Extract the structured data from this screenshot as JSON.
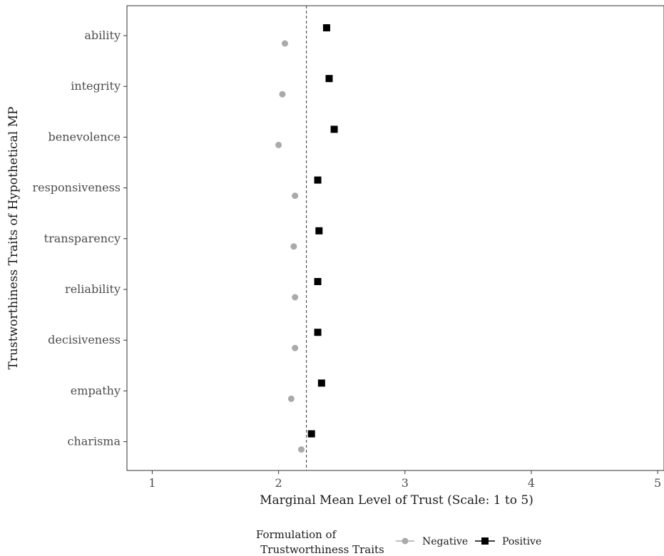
{
  "chart_data": {
    "type": "scatter",
    "orientation": "horizontal",
    "categories": [
      "ability",
      "integrity",
      "benevolence",
      "responsiveness",
      "transparency",
      "reliability",
      "decisiveness",
      "empathy",
      "charisma"
    ],
    "series": [
      {
        "name": "Negative",
        "color": "#aaaaaa",
        "marker": "circle",
        "values": [
          2.05,
          2.03,
          2.0,
          2.13,
          2.12,
          2.13,
          2.13,
          2.1,
          2.18
        ]
      },
      {
        "name": "Positive",
        "color": "#000000",
        "marker": "square",
        "values": [
          2.38,
          2.4,
          2.44,
          2.31,
          2.32,
          2.31,
          2.31,
          2.34,
          2.26
        ]
      }
    ],
    "reference_line": 2.22,
    "xlabel": "Marginal Mean Level of Trust (Scale: 1 to 5)",
    "ylabel": "Trustworthiness Traits of Hypothetical MP",
    "xlim": [
      0.8,
      5.05
    ],
    "xticks": [
      "1",
      "2",
      "3",
      "4",
      "5"
    ],
    "grid": false,
    "legend": {
      "title_lines": [
        "Formulation of",
        "Trustworthiness Traits"
      ],
      "position": "bottom"
    }
  }
}
